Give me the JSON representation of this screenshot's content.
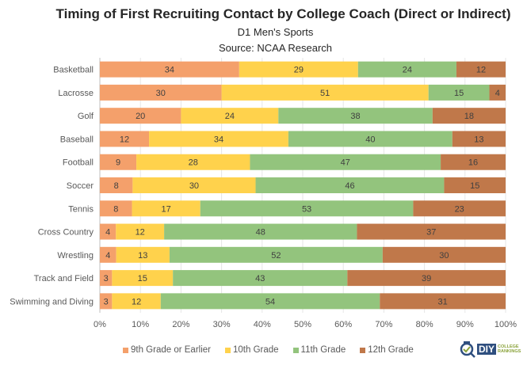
{
  "chart_data": {
    "type": "bar",
    "orientation": "horizontal",
    "stacked": "percent",
    "title": "Timing of First Recruiting Contact by College Coach (Direct or Indirect)",
    "subtitle": [
      "D1 Men's Sports",
      "Source: NCAA Research"
    ],
    "xlabel": "",
    "ylabel": "",
    "xlim": [
      0,
      100
    ],
    "x_ticks": [
      "0%",
      "10%",
      "20%",
      "30%",
      "40%",
      "50%",
      "60%",
      "70%",
      "80%",
      "90%",
      "100%"
    ],
    "grid": "vertical",
    "legend_position": "bottom",
    "categories": [
      "Basketball",
      "Lacrosse",
      "Golf",
      "Baseball",
      "Football",
      "Soccer",
      "Tennis",
      "Cross Country",
      "Wrestling",
      "Track and Field",
      "Swimming and Diving"
    ],
    "series": [
      {
        "name": "9th Grade or Earlier",
        "color": "#f4a06b",
        "values": [
          34,
          30,
          20,
          12,
          9,
          8,
          8,
          4,
          4,
          3,
          3
        ]
      },
      {
        "name": "10th Grade",
        "color": "#ffd24c",
        "values": [
          29,
          51,
          24,
          34,
          28,
          30,
          17,
          12,
          13,
          15,
          12
        ]
      },
      {
        "name": "11th Grade",
        "color": "#93c47d",
        "values": [
          24,
          15,
          38,
          40,
          47,
          46,
          53,
          48,
          52,
          43,
          54
        ]
      },
      {
        "name": "12th Grade",
        "color": "#c0784a",
        "values": [
          12,
          4,
          18,
          13,
          16,
          15,
          23,
          37,
          30,
          39,
          31
        ]
      }
    ]
  },
  "logo": {
    "badge": "DIY",
    "line1": "COLLEGE",
    "line2": "RANKINGS"
  }
}
